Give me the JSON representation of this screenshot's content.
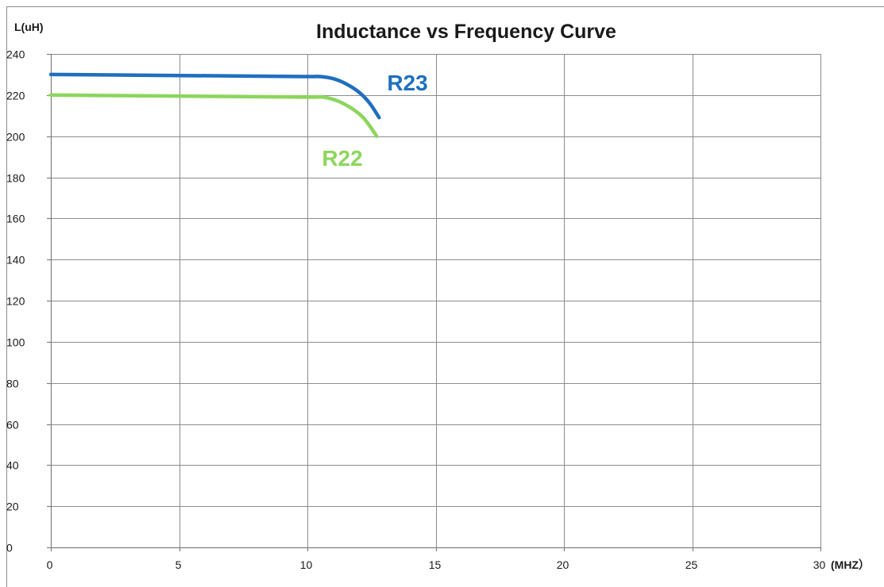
{
  "chart_data": {
    "type": "line",
    "title": "Inductance vs Frequency Curve",
    "ylabel": "L(uH)",
    "xlabel": "(MHZ）",
    "xlim": [
      0,
      30
    ],
    "ylim": [
      0,
      240
    ],
    "x_ticks": [
      0,
      5,
      10,
      15,
      20,
      25,
      30
    ],
    "y_ticks": [
      0,
      20,
      40,
      60,
      80,
      100,
      120,
      140,
      160,
      180,
      200,
      220,
      240
    ],
    "grid": true,
    "legend": "inline labels",
    "series": [
      {
        "name": "R23",
        "color": "#1F6FBF",
        "x": [
          0,
          2,
          5,
          8,
          10,
          10.5,
          11,
          11.5,
          12,
          12.4,
          12.8
        ],
        "y": [
          230,
          229.8,
          229.5,
          229.2,
          229,
          229,
          228,
          225.5,
          221.5,
          216.5,
          209
        ]
      },
      {
        "name": "R22",
        "color": "#8CD65C",
        "x": [
          0,
          2,
          5,
          8,
          10,
          10.6,
          11.1,
          11.6,
          12.1,
          12.4,
          12.7
        ],
        "y": [
          220,
          219.8,
          219.5,
          219.2,
          219,
          219,
          217.5,
          214.5,
          210,
          205.5,
          200
        ]
      }
    ]
  }
}
